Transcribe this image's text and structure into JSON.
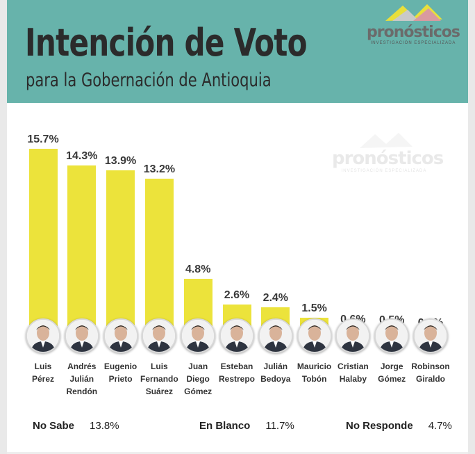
{
  "title": "Intención de Voto",
  "subtitle": "para la Gobernación de Antioquia",
  "logo": {
    "name": "pronósticos",
    "tagline": "INVESTIGACIÓN ESPECIALIZADA"
  },
  "watermark": {
    "name": "pronósticos",
    "tagline": "INVESTIGACIÓN ESPECIALIZADA"
  },
  "colors": {
    "header": "#67b3ab",
    "bar": "#ece33b",
    "text": "#2b2b2b"
  },
  "chart_data": {
    "type": "bar",
    "categories": [
      "Luis Pérez",
      "Andrés Julián Rendón",
      "Eugenio Prieto",
      "Luis Fernando Suárez",
      "Juan Diego Gómez",
      "Esteban Restrepo",
      "Julián Bedoya",
      "Mauricio Tobón",
      "Cristian Halaby",
      "Jorge Gómez",
      "Robinson Giraldo"
    ],
    "name_lines": [
      [
        "Luis",
        "Pérez"
      ],
      [
        "Andrés",
        "Julián",
        "Rendón"
      ],
      [
        "Eugenio",
        "Prieto"
      ],
      [
        "Luis",
        "Fernando",
        "Suárez"
      ],
      [
        "Juan",
        "Diego",
        "Gómez"
      ],
      [
        "Esteban",
        "Restrepo"
      ],
      [
        "Julián",
        "Bedoya"
      ],
      [
        "Mauricio",
        "Tobón"
      ],
      [
        "Cristian",
        "Halaby"
      ],
      [
        "Jorge",
        "Gómez"
      ],
      [
        "Robinson",
        "Giraldo"
      ]
    ],
    "values": [
      15.7,
      14.3,
      13.9,
      13.2,
      4.8,
      2.6,
      2.4,
      1.5,
      0.6,
      0.5,
      0.3
    ],
    "value_labels": [
      "15.7%",
      "14.3%",
      "13.9%",
      "13.2%",
      "4.8%",
      "2.6%",
      "2.4%",
      "1.5%",
      "0.6%",
      "0.5%",
      "0.3%"
    ],
    "title": "Intención de Voto",
    "subtitle": "para la Gobernación de Antioquia",
    "xlabel": "",
    "ylabel": "",
    "grid": false
  },
  "footer": [
    {
      "label": "No Sabe",
      "value": "13.8%"
    },
    {
      "label": "En Blanco",
      "value": "11.7%"
    },
    {
      "label": "No Responde",
      "value": "4.7%"
    }
  ]
}
